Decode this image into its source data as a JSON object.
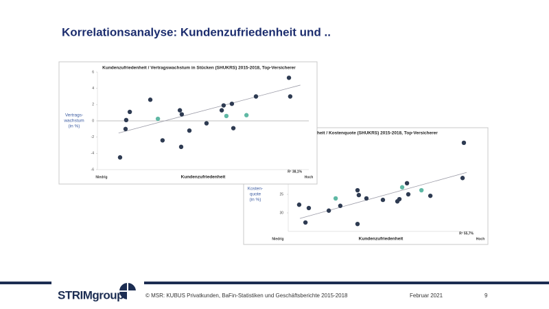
{
  "slide_title": "Korrelationsanalyse:  Kundenzufriedenheit  und ..",
  "chart_data": [
    {
      "type": "scatter",
      "title": "Kundenzufriedenheit / Vertragswachstum in Stücken (SHUKRS) 2015-2018, Top-Versicherer",
      "y_label": [
        "Vertrags-",
        "wachstum",
        "(in %)"
      ],
      "x_label": "Kundenzufriedenheit",
      "x_low": "Niedrig",
      "x_high": "Hoch",
      "annotation": "R² 38,1%",
      "xlim": [
        0,
        100
      ],
      "ylim": [
        -6,
        6
      ],
      "yticks": [
        6,
        4,
        2,
        0,
        -2,
        -4,
        -6
      ],
      "zero_line": true,
      "series": [
        {
          "color": "#2e3b52",
          "x": [
            10.7,
            13.3,
            13.6,
            15.3,
            25,
            30.8,
            39,
            39.9,
            39.6,
            43.5,
            51.6,
            58.8,
            59.7,
            63.6,
            64.3,
            75,
            90.6,
            91.2
          ],
          "values": [
            -4.5,
            -1.0,
            0.1,
            1.1,
            2.6,
            -2.4,
            1.3,
            0.8,
            -3.2,
            -1.2,
            -0.3,
            1.3,
            1.9,
            2.1,
            -0.9,
            3.0,
            5.3,
            3.0
          ]
        },
        {
          "color": "#5fb8a4",
          "x": [
            28.6,
            61,
            70.5
          ],
          "values": [
            0.25,
            0.6,
            0.7
          ]
        }
      ],
      "trend": {
        "color": "#9a9aa6",
        "x": [
          10,
          96
        ],
        "values": [
          -1.5,
          4.4
        ]
      }
    },
    {
      "type": "scatter",
      "title": "heit / Kostenquote (SHUKRS) 2015-2018, Top-Versicherer",
      "y_label": [
        "Kosten-",
        "quote",
        "(in %)"
      ],
      "x_label": "Kundenzufriedenheit",
      "x_low": "Niedrig",
      "x_high": "Hoch",
      "annotation": "R² 55,7%",
      "xlim": [
        0,
        100
      ],
      "ylim": [
        35,
        10
      ],
      "yticks": [
        25,
        30
      ],
      "zero_line": false,
      "series": [
        {
          "color": "#2e3b52",
          "x": [
            5.9,
            9.3,
            11.1,
            21.9,
            28.1,
            37.4,
            38.1,
            37.4,
            42.2,
            51.1,
            58.9,
            60,
            64.1,
            64.8,
            76.7,
            94.1,
            94.8
          ],
          "values": [
            27.8,
            32.6,
            28.7,
            29.4,
            28.1,
            23.9,
            25.2,
            33.0,
            26.1,
            26.5,
            26.9,
            26.3,
            22.0,
            25.0,
            25.4,
            20.6,
            11.1
          ]
        },
        {
          "color": "#5fb8a4",
          "x": [
            25.6,
            61.5,
            71.9
          ],
          "values": [
            26.1,
            23.1,
            23.9
          ]
        }
      ],
      "trend": {
        "color": "#9a9aa6",
        "x": [
          6.3,
          96.3
        ],
        "values": [
          31.5,
          19.1
        ]
      }
    }
  ],
  "footer": {
    "logo": "STRIMgroup",
    "source": "© MSR:  KUBUS Privatkunden,  BaFin-Statistiken  und  Geschäftsberichte   2015-2018",
    "date": "Februar  2021",
    "page": "9"
  }
}
